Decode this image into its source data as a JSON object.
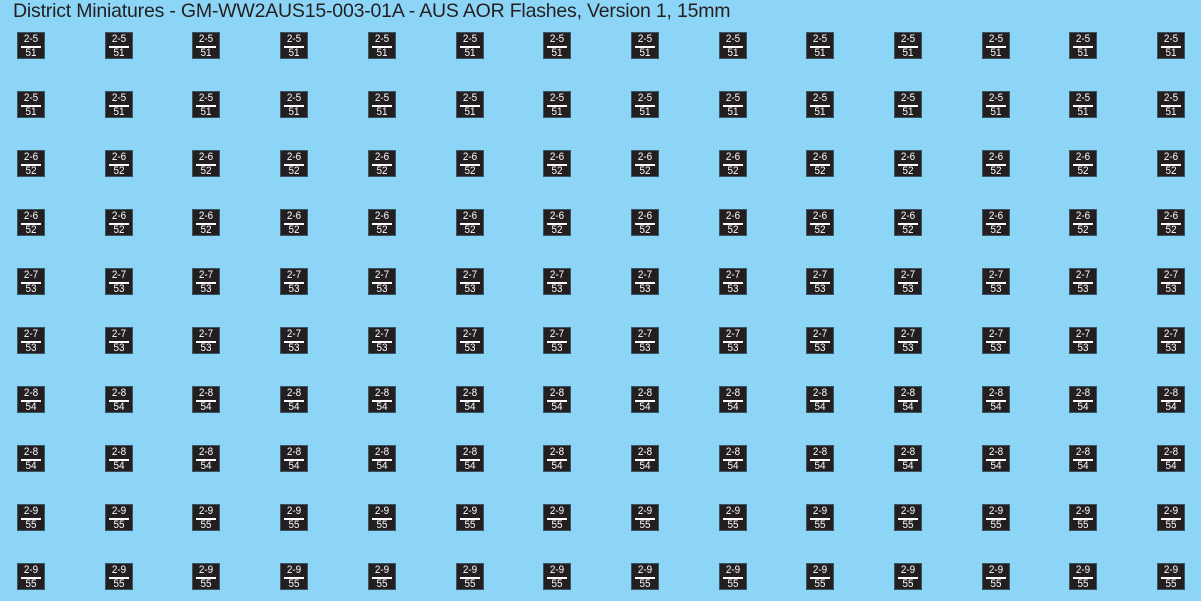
{
  "title": "District Miniatures - GM-WW2AUS15-003-01A - AUS AOR Flashes, Version 1, 15mm",
  "colors": {
    "background": "#8dd5f6",
    "flash": "#231f20",
    "flash_text": "#ffffff"
  },
  "columns_per_row": 14,
  "rows": [
    {
      "top": "2-5",
      "bottom": "51"
    },
    {
      "top": "2-5",
      "bottom": "51"
    },
    {
      "top": "2-6",
      "bottom": "52"
    },
    {
      "top": "2-6",
      "bottom": "52"
    },
    {
      "top": "2-7",
      "bottom": "53"
    },
    {
      "top": "2-7",
      "bottom": "53"
    },
    {
      "top": "2-8",
      "bottom": "54"
    },
    {
      "top": "2-8",
      "bottom": "54"
    },
    {
      "top": "2-9",
      "bottom": "55"
    },
    {
      "top": "2-9",
      "bottom": "55"
    }
  ]
}
